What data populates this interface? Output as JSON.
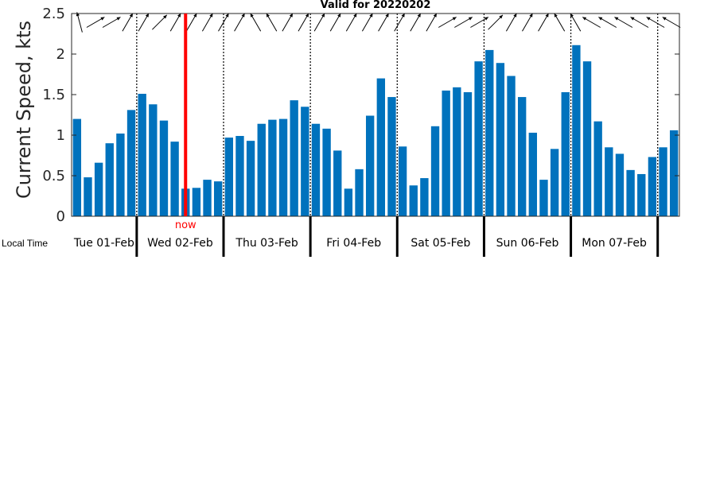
{
  "chart_data": {
    "type": "bar",
    "title": "Valid for 20220202",
    "ylabel": "Current Speed, kts",
    "ylim": [
      0,
      2.5
    ],
    "yticks": [
      "0",
      "0.5",
      "1",
      "1.5",
      "2",
      "2.5"
    ],
    "grid": false,
    "bar_color": "#0072bd",
    "now_color": "#ff0000",
    "now_label": "now",
    "now_index": 10.5,
    "time_label": "Local Time",
    "days": [
      "Tue 01-Feb",
      "Wed 02-Feb",
      "Thu 03-Feb",
      "Fri 04-Feb",
      "Sat 05-Feb",
      "Sun 06-Feb",
      "Mon 07-Feb"
    ],
    "values": [
      1.2,
      0.48,
      0.66,
      0.9,
      1.02,
      1.31,
      1.51,
      1.38,
      1.18,
      0.92,
      0.34,
      0.35,
      0.45,
      0.43,
      0.97,
      0.99,
      0.93,
      1.14,
      1.19,
      1.2,
      1.43,
      1.35,
      1.14,
      1.08,
      0.81,
      0.34,
      0.58,
      1.24,
      1.7,
      1.47,
      0.86,
      0.38,
      0.47,
      1.11,
      1.55,
      1.59,
      1.53,
      1.91,
      2.05,
      1.89,
      1.73,
      1.47,
      1.03,
      0.45,
      0.83,
      1.53,
      2.11,
      1.91,
      1.17,
      0.85,
      0.77,
      0.57,
      0.52,
      0.73,
      0.85,
      1.06
    ],
    "direction_arrows_deg": [
      345,
      60,
      60,
      30,
      30,
      45,
      30,
      30,
      30,
      30,
      30,
      330,
      330,
      30,
      30,
      30,
      30,
      30,
      30,
      30,
      30,
      30,
      30,
      60,
      60,
      60,
      45,
      30,
      30,
      30,
      330,
      330,
      300,
      300,
      300,
      300,
      300,
      300
    ]
  }
}
